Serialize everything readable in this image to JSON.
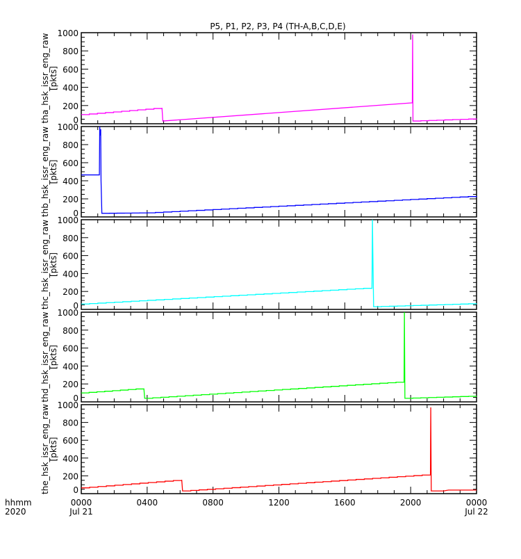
{
  "chart_data": {
    "type": "line",
    "title": "P5, P1, P2, P3, P4 (TH-A,B,C,D,E)",
    "xlabel_left": [
      "hhmm",
      "2020"
    ],
    "x_range_hours": [
      0,
      24
    ],
    "x_ticks": [
      {
        "h": 0,
        "label": "0000",
        "sub": "Jul 21"
      },
      {
        "h": 4,
        "label": "0400",
        "sub": ""
      },
      {
        "h": 8,
        "label": "0800",
        "sub": ""
      },
      {
        "h": 12,
        "label": "1200",
        "sub": ""
      },
      {
        "h": 16,
        "label": "1600",
        "sub": ""
      },
      {
        "h": 20,
        "label": "2000",
        "sub": ""
      },
      {
        "h": 24,
        "label": "0000",
        "sub": "Jul 22"
      }
    ],
    "ylim": [
      0,
      1000
    ],
    "y_ticks": [
      "0",
      "200",
      "400",
      "600",
      "800",
      "1000"
    ],
    "panels": [
      {
        "ylabel": "tha_hsk_issr_eng_raw",
        "unit": "[pkts]",
        "color": "#ff00ff",
        "points": [
          [
            0,
            100
          ],
          [
            4.9,
            175
          ],
          [
            4.95,
            30
          ],
          [
            20.1,
            230
          ],
          [
            20.12,
            980
          ],
          [
            20.14,
            30
          ],
          [
            24,
            55
          ]
        ]
      },
      {
        "ylabel": "thb_hsk_issr_eng_raw",
        "unit": "[pkts]",
        "color": "#0000ff",
        "points": [
          [
            0,
            465
          ],
          [
            1.1,
            465
          ],
          [
            1.12,
            1000
          ],
          [
            1.15,
            900
          ],
          [
            1.18,
            970
          ],
          [
            1.2,
            400
          ],
          [
            1.25,
            40
          ],
          [
            4,
            45
          ],
          [
            24,
            230
          ]
        ]
      },
      {
        "ylabel": "thc_hsk_issr_eng_raw",
        "unit": "[pkts]",
        "color": "#00ffff",
        "points": [
          [
            0,
            60
          ],
          [
            17.65,
            240
          ],
          [
            17.68,
            1000
          ],
          [
            17.7,
            680
          ],
          [
            17.75,
            30
          ],
          [
            24,
            65
          ]
        ]
      },
      {
        "ylabel": "thd_hsk_issr_eng_raw",
        "unit": "[pkts]",
        "color": "#00ff00",
        "points": [
          [
            0,
            100
          ],
          [
            3.8,
            150
          ],
          [
            3.85,
            40
          ],
          [
            19.6,
            225
          ],
          [
            19.62,
            1000
          ],
          [
            19.65,
            40
          ],
          [
            24,
            65
          ]
        ]
      },
      {
        "ylabel": "the_hsk_issr_eng_raw",
        "unit": "[pkts]",
        "color": "#ff0000",
        "points": [
          [
            0,
            65
          ],
          [
            6.1,
            155
          ],
          [
            6.15,
            30
          ],
          [
            21.2,
            215
          ],
          [
            21.22,
            970
          ],
          [
            21.25,
            30
          ],
          [
            22,
            30
          ],
          [
            22.3,
            40
          ],
          [
            24,
            40
          ]
        ]
      }
    ]
  }
}
